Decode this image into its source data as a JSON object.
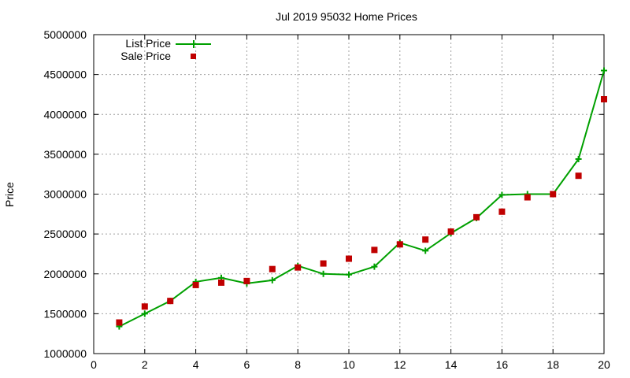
{
  "chart_data": {
    "type": "line",
    "title": "Jul 2019 95032 Home Prices",
    "xlabel": "",
    "ylabel": "Price",
    "xlim": [
      0,
      20
    ],
    "ylim": [
      1000000,
      5000000
    ],
    "x_ticks": [
      "0",
      "2",
      "4",
      "6",
      "8",
      "10",
      "12",
      "14",
      "16",
      "18",
      "20"
    ],
    "y_ticks": [
      "1000000",
      "1500000",
      "2000000",
      "2500000",
      "3000000",
      "3500000",
      "4000000",
      "4500000",
      "5000000"
    ],
    "grid": true,
    "legend_position": "top-left",
    "x": [
      1,
      2,
      3,
      4,
      5,
      6,
      7,
      8,
      9,
      10,
      11,
      12,
      13,
      14,
      15,
      16,
      17,
      18,
      19,
      20
    ],
    "series": [
      {
        "name": "List Price",
        "style": "line with plus markers",
        "color": "#00a000",
        "values": [
          1340000,
          1500000,
          1660000,
          1900000,
          1950000,
          1880000,
          1920000,
          2100000,
          2000000,
          1990000,
          2090000,
          2390000,
          2290000,
          2510000,
          2700000,
          2990000,
          3000000,
          3000000,
          3440000,
          4550000
        ]
      },
      {
        "name": "Sale Price",
        "style": "square markers",
        "color": "#c00000",
        "values": [
          1390000,
          1590000,
          1660000,
          1860000,
          1890000,
          1910000,
          2060000,
          2080000,
          2130000,
          2190000,
          2300000,
          2370000,
          2430000,
          2530000,
          2710000,
          2780000,
          2960000,
          3000000,
          3230000,
          4190000
        ]
      }
    ]
  }
}
